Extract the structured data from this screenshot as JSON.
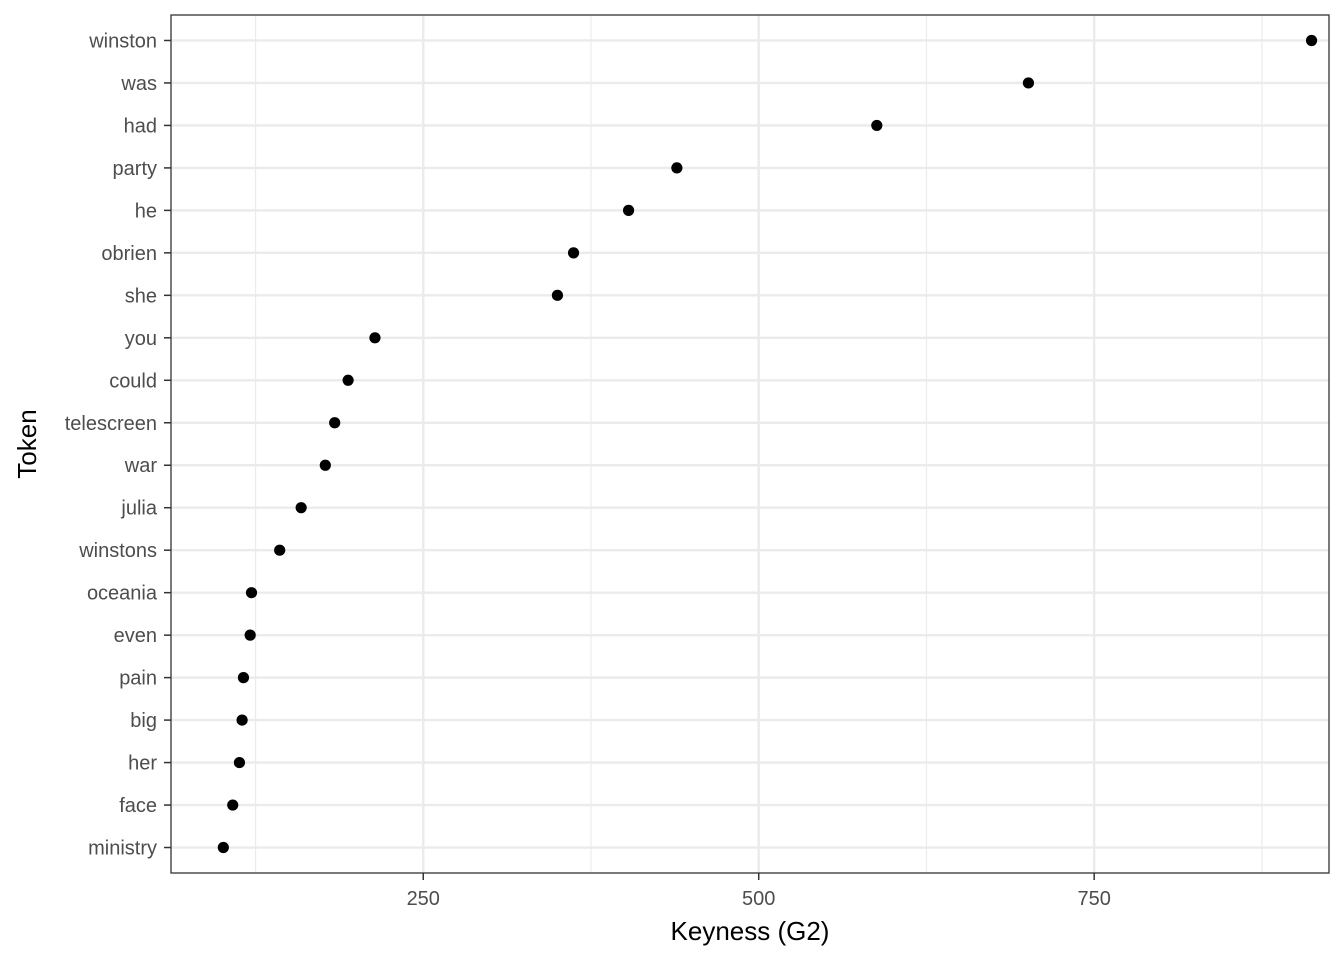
{
  "chart_data": {
    "type": "scatter",
    "xlabel": "Keyness (G2)",
    "ylabel": "Token",
    "xlim": [
      62,
      925
    ],
    "x_ticks": [
      250,
      500,
      750
    ],
    "x_tick_labels": [
      "250",
      "500",
      "750"
    ],
    "grid": true,
    "categories": [
      "winston",
      "was",
      "had",
      "party",
      "he",
      "obrien",
      "she",
      "you",
      "could",
      "telescreen",
      "war",
      "julia",
      "winstons",
      "oceania",
      "even",
      "pain",
      "big",
      "her",
      "face",
      "ministry"
    ],
    "values": [
      912,
      701,
      588,
      439,
      403,
      362,
      350,
      214,
      194,
      184,
      177,
      159,
      143,
      122,
      121,
      116,
      115,
      113,
      108,
      101
    ],
    "point_color": "#000000",
    "grid_color": "#ebebeb",
    "panel_border_color": "#333333"
  }
}
